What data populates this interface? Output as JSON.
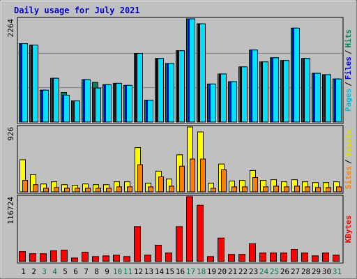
{
  "title": "Daily usage for July 2021",
  "legend_separator": "/",
  "chart_data": [
    {
      "type": "bar",
      "ylim": [
        0,
        2264
      ],
      "yticks": [
        2264
      ],
      "grid": true,
      "series": [
        {
          "name": "Hits",
          "color": "#00805c",
          "values": [
            1720,
            1690,
            700,
            960,
            650,
            465,
            930,
            870,
            820,
            850,
            805,
            1505,
            480,
            1395,
            1285,
            1565,
            2264,
            2155,
            835,
            1055,
            885,
            1210,
            1580,
            1320,
            1410,
            1350,
            2060,
            1395,
            1070,
            1040,
            945
          ]
        },
        {
          "name": "Files",
          "color": "#0000ff",
          "values": [
            1720,
            1690,
            700,
            960,
            590,
            465,
            930,
            745,
            820,
            850,
            805,
            1505,
            480,
            1395,
            1285,
            1565,
            2264,
            2155,
            835,
            1055,
            885,
            1210,
            1580,
            1320,
            1410,
            1350,
            2060,
            1395,
            1070,
            1040,
            945
          ]
        },
        {
          "name": "Pages",
          "color": "#00e0ff",
          "values": [
            1720,
            1690,
            700,
            960,
            590,
            465,
            930,
            745,
            820,
            850,
            805,
            1505,
            480,
            1395,
            1285,
            1565,
            2264,
            2155,
            835,
            1055,
            885,
            1210,
            1580,
            1320,
            1410,
            1350,
            2060,
            1395,
            1070,
            1040,
            945
          ]
        }
      ]
    },
    {
      "type": "bar",
      "ylim": [
        0,
        926
      ],
      "yticks": [
        926
      ],
      "grid": false,
      "series": [
        {
          "name": "Visits",
          "color": "#ffff00",
          "values": [
            458,
            244,
            112,
            143,
            102,
            92,
            112,
            102,
            102,
            143,
            143,
            631,
            122,
            295,
            183,
            529,
            926,
            855,
            122,
            397,
            153,
            163,
            305,
            163,
            173,
            143,
            173,
            143,
            132,
            132,
            143
          ]
        },
        {
          "name": "Sites",
          "color": "#ff8000",
          "values": [
            163,
            102,
            51,
            61,
            51,
            51,
            51,
            51,
            51,
            71,
            71,
            387,
            71,
            214,
            81,
            366,
            468,
            468,
            51,
            316,
            71,
            71,
            204,
            71,
            81,
            71,
            81,
            71,
            61,
            61,
            71
          ]
        }
      ]
    },
    {
      "type": "bar",
      "ylim": [
        0,
        116724
      ],
      "yticks": [
        116724
      ],
      "grid": false,
      "categories": [
        "1",
        "2",
        "3",
        "4",
        "5",
        "6",
        "7",
        "8",
        "9",
        "10",
        "11",
        "12",
        "13",
        "14",
        "15",
        "16",
        "17",
        "18",
        "19",
        "20",
        "21",
        "22",
        "23",
        "24",
        "25",
        "26",
        "27",
        "28",
        "29",
        "30",
        "31"
      ],
      "category_colors": [
        "#000000",
        "#000000",
        "#00805c",
        "#00805c",
        "#000000",
        "#000000",
        "#000000",
        "#000000",
        "#000000",
        "#00805c",
        "#00805c",
        "#000000",
        "#000000",
        "#000000",
        "#000000",
        "#000000",
        "#00805c",
        "#00805c",
        "#000000",
        "#000000",
        "#000000",
        "#000000",
        "#000000",
        "#00805c",
        "#00805c",
        "#000000",
        "#000000",
        "#000000",
        "#000000",
        "#000000",
        "#00805c"
      ],
      "series": [
        {
          "name": "KBytes",
          "color": "#ff0000",
          "values": [
            17960,
            14110,
            14110,
            19245,
            20530,
            6415,
            16680,
            8980,
            10260,
            11550,
            8980,
            62870,
            11550,
            29510,
            15400,
            62870,
            116724,
            101360,
            8980,
            42340,
            12830,
            12830,
            32080,
            15400,
            15400,
            15400,
            21810,
            15400,
            10260,
            15400,
            11550
          ]
        }
      ]
    }
  ]
}
